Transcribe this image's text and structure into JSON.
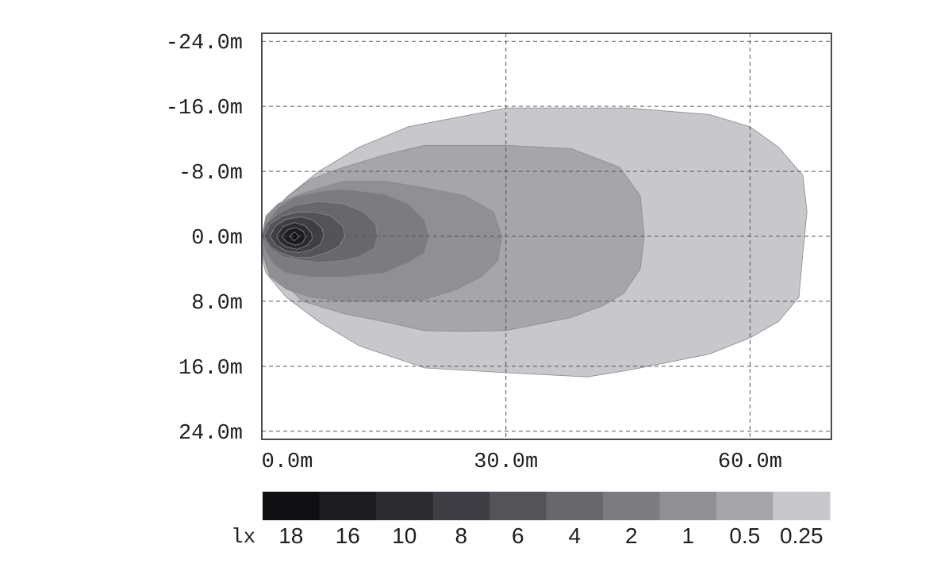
{
  "chart_data": {
    "type": "heatmap",
    "subtype": "isolux contour plot",
    "x_axis": {
      "range": [
        0,
        70
      ],
      "ticks": [
        0,
        30,
        60
      ],
      "tick_labels": [
        "0.0m",
        "30.0m",
        "60.0m"
      ]
    },
    "y_axis": {
      "range": [
        -25,
        25
      ],
      "inverted": true,
      "ticks": [
        -24,
        -16,
        -8,
        0,
        8,
        16,
        24
      ],
      "tick_labels": [
        "-24.0m",
        "-16.0m",
        "-8.0m",
        "0.0m",
        "8.0m",
        "16.0m",
        "24.0m"
      ]
    },
    "grid": true,
    "legend": {
      "unit": "lx",
      "placement": "bottom",
      "levels": [
        {
          "label": "18",
          "value": 18,
          "color": "#0f0f12"
        },
        {
          "label": "16",
          "value": 16,
          "color": "#1c1c20"
        },
        {
          "label": "10",
          "value": 10,
          "color": "#2a2a2f"
        },
        {
          "label": "8",
          "value": 8,
          "color": "#3e3e44"
        },
        {
          "label": "6",
          "value": 6,
          "color": "#535358"
        },
        {
          "label": "4",
          "value": 4,
          "color": "#67676c"
        },
        {
          "label": "2",
          "value": 2,
          "color": "#7b7b80"
        },
        {
          "label": "1",
          "value": 1,
          "color": "#8f8f94"
        },
        {
          "label": "0.5",
          "value": 0.5,
          "color": "#a6a6aa"
        },
        {
          "label": "0.25",
          "value": 0.25,
          "color": "#c8c8cc"
        }
      ]
    },
    "contours": [
      {
        "level": 0.25,
        "color": "#c8c8cc",
        "points": [
          [
            0,
            0.3
          ],
          [
            1,
            -2.5
          ],
          [
            3,
            -4.8
          ],
          [
            7,
            -8
          ],
          [
            12,
            -11
          ],
          [
            18,
            -13.5
          ],
          [
            30,
            -15.8
          ],
          [
            45,
            -15.8
          ],
          [
            55,
            -15
          ],
          [
            60,
            -13.5
          ],
          [
            63.5,
            -11
          ],
          [
            66.5,
            -7.5
          ],
          [
            67,
            -3
          ],
          [
            66.5,
            2
          ],
          [
            66,
            7.5
          ],
          [
            63.5,
            10.5
          ],
          [
            60,
            12.5
          ],
          [
            55,
            14.5
          ],
          [
            45,
            16.5
          ],
          [
            40,
            17.3
          ],
          [
            30,
            16.8
          ],
          [
            20,
            16.2
          ],
          [
            12,
            13.5
          ],
          [
            7,
            10.5
          ],
          [
            3,
            7.5
          ],
          [
            0.5,
            4.5
          ],
          [
            0,
            2.5
          ]
        ]
      },
      {
        "level": 0.5,
        "color": "#a6a6aa",
        "points": [
          [
            0,
            0.2
          ],
          [
            1,
            -2.5
          ],
          [
            3,
            -4.8
          ],
          [
            6,
            -7
          ],
          [
            10,
            -8.5
          ],
          [
            15,
            -10
          ],
          [
            20,
            -11.2
          ],
          [
            30,
            -11.2
          ],
          [
            38,
            -10.8
          ],
          [
            44,
            -8.5
          ],
          [
            46.5,
            -5
          ],
          [
            47,
            0
          ],
          [
            46.5,
            4
          ],
          [
            44.5,
            7
          ],
          [
            42,
            8.5
          ],
          [
            38,
            10
          ],
          [
            30,
            11.6
          ],
          [
            25,
            11.7
          ],
          [
            20,
            11.6
          ],
          [
            15,
            10.5
          ],
          [
            10,
            9.5
          ],
          [
            5,
            8
          ],
          [
            2,
            5
          ],
          [
            0.5,
            3.5
          ],
          [
            0,
            1.5
          ]
        ]
      },
      {
        "level": 1,
        "color": "#8f8f94",
        "points": [
          [
            0,
            0.1
          ],
          [
            0.5,
            -2.5
          ],
          [
            2,
            -4
          ],
          [
            5,
            -5.3
          ],
          [
            10,
            -6.8
          ],
          [
            15,
            -6.8
          ],
          [
            20,
            -6
          ],
          [
            25,
            -5
          ],
          [
            28.5,
            -3
          ],
          [
            29.5,
            0
          ],
          [
            29,
            3
          ],
          [
            27,
            5
          ],
          [
            24,
            6.5
          ],
          [
            20,
            7.8
          ],
          [
            15,
            8
          ],
          [
            10,
            8
          ],
          [
            6,
            7.5
          ],
          [
            3,
            6.5
          ],
          [
            1,
            5
          ],
          [
            0,
            2
          ]
        ]
      },
      {
        "level": 2,
        "color": "#7b7b80",
        "points": [
          [
            0,
            0
          ],
          [
            0.5,
            -1.5
          ],
          [
            2,
            -3.5
          ],
          [
            4,
            -4.8
          ],
          [
            7,
            -5.5
          ],
          [
            10,
            -5.8
          ],
          [
            15,
            -5.2
          ],
          [
            18,
            -4
          ],
          [
            20,
            -2
          ],
          [
            20.5,
            0
          ],
          [
            20,
            2
          ],
          [
            18,
            3.2
          ],
          [
            15,
            4.5
          ],
          [
            10,
            5
          ],
          [
            6,
            5
          ],
          [
            3,
            4.5
          ],
          [
            1.5,
            3.5
          ],
          [
            0.5,
            1.8
          ]
        ]
      },
      {
        "level": 4,
        "color": "#67676c",
        "points": [
          [
            0,
            0
          ],
          [
            0.5,
            -1.5
          ],
          [
            2,
            -2.8
          ],
          [
            4,
            -3.8
          ],
          [
            7,
            -4.3
          ],
          [
            10,
            -4
          ],
          [
            12.5,
            -3
          ],
          [
            14,
            -1.5
          ],
          [
            14.2,
            0
          ],
          [
            13.8,
            1.5
          ],
          [
            12,
            2.5
          ],
          [
            10,
            3
          ],
          [
            7,
            3.2
          ],
          [
            5,
            3
          ],
          [
            2.5,
            2.5
          ],
          [
            1,
            1.5
          ]
        ]
      },
      {
        "level": 6,
        "color": "#535358",
        "points": [
          [
            0.3,
            0
          ],
          [
            1,
            -1.5
          ],
          [
            2.5,
            -2.5
          ],
          [
            4.5,
            -3
          ],
          [
            6.5,
            -3
          ],
          [
            8.5,
            -2.5
          ],
          [
            10,
            -1.2
          ],
          [
            10.2,
            0
          ],
          [
            9.5,
            1.2
          ],
          [
            8,
            2
          ],
          [
            6,
            2.6
          ],
          [
            4,
            2.6
          ],
          [
            2.2,
            2
          ],
          [
            1,
            1.2
          ]
        ]
      },
      {
        "level": 8,
        "color": "#3e3e44",
        "points": [
          [
            1,
            0
          ],
          [
            1.7,
            -1.3
          ],
          [
            3,
            -2.1
          ],
          [
            4.8,
            -2.4
          ],
          [
            6.3,
            -2
          ],
          [
            7.4,
            -1
          ],
          [
            7.6,
            0
          ],
          [
            7.2,
            1
          ],
          [
            6,
            1.7
          ],
          [
            4.5,
            2
          ],
          [
            3,
            1.8
          ],
          [
            1.8,
            1.1
          ]
        ]
      },
      {
        "level": 10,
        "color": "#2a2a2f",
        "points": [
          [
            1.8,
            0
          ],
          [
            2.6,
            -1.2
          ],
          [
            4,
            -1.7
          ],
          [
            5.3,
            -1.3
          ],
          [
            6.1,
            -0.4
          ],
          [
            6.2,
            0.3
          ],
          [
            5.6,
            1.1
          ],
          [
            4.3,
            1.6
          ],
          [
            3,
            1.3
          ],
          [
            2.2,
            0.7
          ]
        ]
      },
      {
        "level": 16,
        "color": "#1c1c20",
        "points": [
          [
            2.4,
            0
          ],
          [
            3.2,
            -0.8
          ],
          [
            4.2,
            -1.1
          ],
          [
            5.1,
            -0.6
          ],
          [
            5.4,
            0.1
          ],
          [
            5,
            0.8
          ],
          [
            4.1,
            1.1
          ],
          [
            3.1,
            0.7
          ]
        ]
      },
      {
        "level": 18,
        "color": "#0f0f12",
        "points": [
          [
            3.4,
            0
          ],
          [
            4,
            -0.55
          ],
          [
            4.6,
            0
          ],
          [
            4,
            0.55
          ]
        ]
      }
    ]
  }
}
